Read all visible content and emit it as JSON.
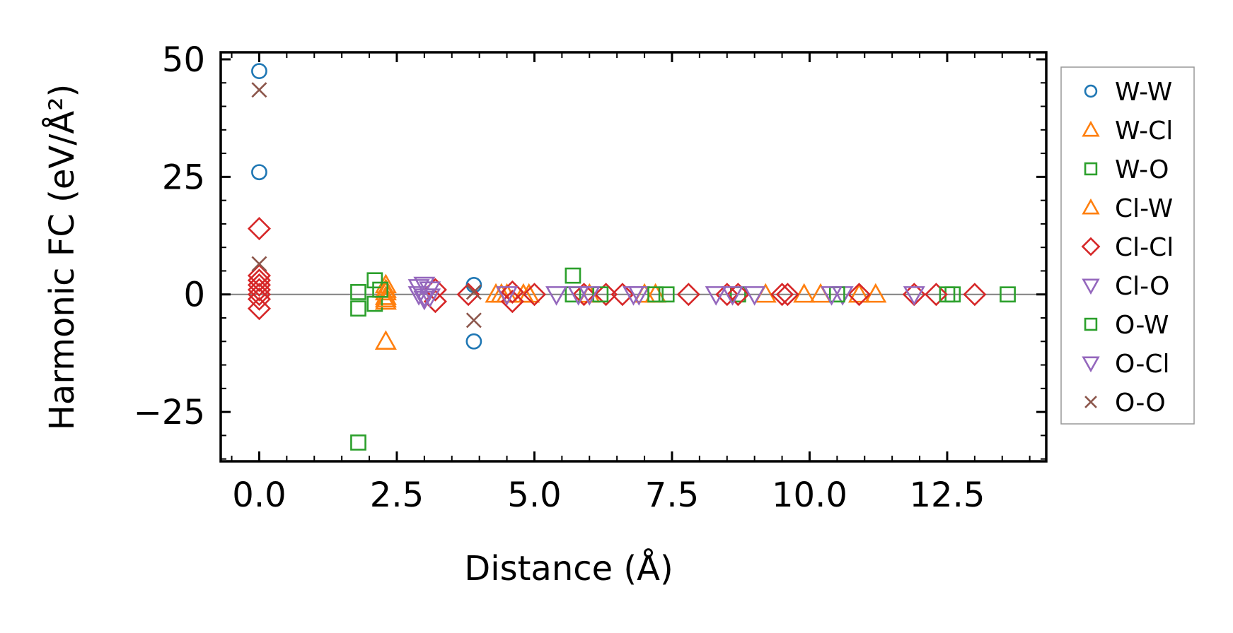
{
  "chart_data": {
    "type": "scatter",
    "title": "",
    "xlabel": "Distance (Å)",
    "ylabel": "Harmonic FC (eV/Å²)",
    "xlim": [
      -0.7,
      14.3
    ],
    "ylim": [
      -35.5,
      51.5
    ],
    "x_ticks": [
      0.0,
      2.5,
      5.0,
      7.5,
      10.0,
      12.5
    ],
    "x_tick_labels": [
      "0.0",
      "2.5",
      "5.0",
      "7.5",
      "10.0",
      "12.5"
    ],
    "y_ticks": [
      -25,
      0,
      25,
      50
    ],
    "y_tick_labels": [
      "−25",
      "0",
      "25",
      "50"
    ],
    "zero_line": true,
    "legend_position": "outside-right",
    "series": [
      {
        "name": "W-W",
        "marker": "circle",
        "color": "#1f77b4",
        "points": [
          [
            0,
            47.5
          ],
          [
            0,
            26
          ],
          [
            3.9,
            2
          ],
          [
            3.9,
            -10
          ]
        ]
      },
      {
        "name": "W-Cl",
        "marker": "triangle-up",
        "color": "#ff7f0e",
        "points": [
          [
            2.3,
            2
          ],
          [
            2.3,
            0.5
          ],
          [
            2.3,
            -0.5
          ],
          [
            2.3,
            -1.5
          ],
          [
            2.3,
            -10
          ],
          [
            4.3,
            0
          ],
          [
            4.5,
            0
          ],
          [
            4.9,
            0
          ],
          [
            7.2,
            0
          ],
          [
            9.2,
            0
          ],
          [
            10.2,
            0
          ],
          [
            11.2,
            0
          ]
        ]
      },
      {
        "name": "W-O",
        "marker": "square",
        "color": "#2ca02c",
        "points": [
          [
            1.8,
            0.5
          ],
          [
            1.8,
            -3
          ],
          [
            1.8,
            -31.5
          ],
          [
            2.1,
            3
          ],
          [
            2.1,
            -2
          ],
          [
            5.7,
            4
          ],
          [
            5.7,
            0
          ],
          [
            7.4,
            0
          ],
          [
            8.7,
            0
          ],
          [
            12.6,
            0
          ],
          [
            13.6,
            0
          ]
        ]
      },
      {
        "name": "Cl-W",
        "marker": "triangle-up",
        "color": "#ff7f0e",
        "points": [
          [
            2.3,
            1
          ],
          [
            2.3,
            -1
          ],
          [
            4.4,
            0
          ],
          [
            4.8,
            0
          ],
          [
            6.0,
            0
          ],
          [
            7.0,
            0
          ],
          [
            9.9,
            0
          ],
          [
            10.9,
            0
          ]
        ]
      },
      {
        "name": "Cl-Cl",
        "marker": "diamond",
        "color": "#d62728",
        "points": [
          [
            0,
            14
          ],
          [
            0,
            4
          ],
          [
            0,
            3
          ],
          [
            0,
            2
          ],
          [
            0,
            1
          ],
          [
            0,
            0
          ],
          [
            0,
            -1
          ],
          [
            0,
            -3
          ],
          [
            3.2,
            1
          ],
          [
            3.2,
            -1.5
          ],
          [
            3.8,
            0
          ],
          [
            4.6,
            0.5
          ],
          [
            4.6,
            -1.5
          ],
          [
            5.0,
            0
          ],
          [
            5.9,
            0
          ],
          [
            6.3,
            0
          ],
          [
            6.6,
            0
          ],
          [
            7.8,
            0
          ],
          [
            8.5,
            0
          ],
          [
            8.7,
            0
          ],
          [
            9.5,
            0
          ],
          [
            9.6,
            0
          ],
          [
            10.9,
            0
          ],
          [
            11.9,
            0
          ],
          [
            12.3,
            0
          ],
          [
            13.0,
            0
          ]
        ]
      },
      {
        "name": "Cl-O",
        "marker": "triangle-down",
        "color": "#9467bd",
        "points": [
          [
            2.9,
            1.5
          ],
          [
            2.9,
            0
          ],
          [
            3.0,
            -1
          ],
          [
            3.1,
            1
          ],
          [
            3.1,
            -0.5
          ],
          [
            4.5,
            0
          ],
          [
            5.4,
            0
          ],
          [
            5.8,
            0
          ],
          [
            6.9,
            0
          ],
          [
            8.3,
            0
          ],
          [
            9.0,
            0
          ],
          [
            10.6,
            0
          ],
          [
            11.9,
            0
          ]
        ]
      },
      {
        "name": "O-W",
        "marker": "square",
        "color": "#2ca02c",
        "points": [
          [
            2.2,
            1
          ],
          [
            6.2,
            0
          ],
          [
            7.2,
            0
          ],
          [
            10.5,
            0
          ],
          [
            12.5,
            0
          ]
        ]
      },
      {
        "name": "O-Cl",
        "marker": "triangle-down",
        "color": "#9467bd",
        "points": [
          [
            3.0,
            2
          ],
          [
            3.0,
            -0.5
          ],
          [
            6.0,
            0
          ],
          [
            6.8,
            0
          ],
          [
            8.6,
            0
          ],
          [
            10.4,
            0
          ]
        ]
      },
      {
        "name": "O-O",
        "marker": "x",
        "color": "#8c564b",
        "points": [
          [
            0,
            43.5
          ],
          [
            0,
            6.5
          ],
          [
            3.9,
            -5.5
          ],
          [
            3.9,
            0.5
          ]
        ]
      }
    ]
  }
}
